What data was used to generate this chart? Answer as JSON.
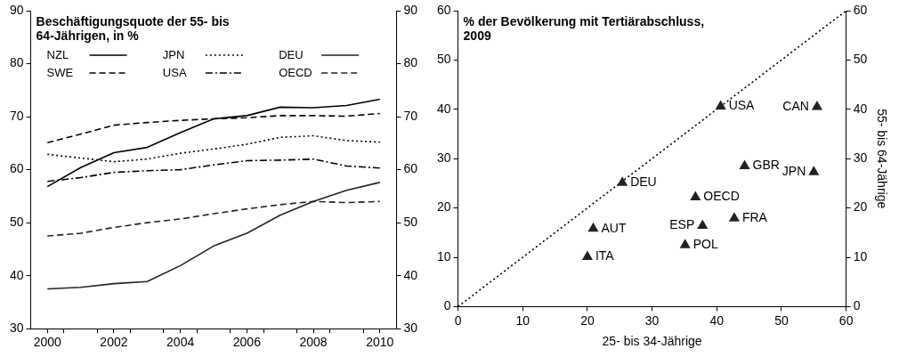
{
  "chart_data": [
    {
      "type": "line",
      "title": "Beschäftigungsquote der 55- bis 64-Jährigen, in %",
      "legend": "top",
      "grid": false,
      "marker": "none",
      "xlim": [
        1999.5,
        2010.5
      ],
      "xticks": [
        {
          "value": 2000,
          "label": "2000"
        },
        {
          "value": 2000.5,
          "label": null
        },
        {
          "value": 2001.5,
          "label": null
        },
        {
          "value": 2002,
          "label": "2002"
        },
        {
          "value": 2002.5,
          "label": null
        },
        {
          "value": 2003.5,
          "label": null
        },
        {
          "value": 2004,
          "label": "2004"
        },
        {
          "value": 2004.5,
          "label": null
        },
        {
          "value": 2005.5,
          "label": null
        },
        {
          "value": 2006,
          "label": "2006"
        },
        {
          "value": 2006.5,
          "label": null
        },
        {
          "value": 2007.5,
          "label": null
        },
        {
          "value": 2008,
          "label": "2008"
        },
        {
          "value": 2008.5,
          "label": null
        },
        {
          "value": 2009.5,
          "label": null
        },
        {
          "value": 2010,
          "label": "2010"
        }
      ],
      "ylim": [
        30,
        90
      ],
      "yticks": [
        30,
        40,
        50,
        60,
        70,
        80,
        90
      ],
      "y2lim": [
        30,
        90
      ],
      "y2ticks": [
        30,
        40,
        50,
        60,
        70,
        80,
        90
      ],
      "x": [
        2000,
        2001,
        2002,
        2003,
        2004,
        2005,
        2006,
        2007,
        2008,
        2009,
        2010
      ],
      "series": [
        {
          "name": "NZL",
          "color": "#000000",
          "line_style": "solid",
          "values": [
            56.8,
            60.4,
            63.2,
            64.2,
            67.0,
            69.6,
            70.2,
            71.8,
            71.7,
            72.1,
            73.3
          ]
        },
        {
          "name": "SWE",
          "color": "#000000",
          "line_style": "dashed",
          "values": [
            65.1,
            66.7,
            68.4,
            68.9,
            69.3,
            69.6,
            69.8,
            70.2,
            70.2,
            70.1,
            70.6
          ]
        },
        {
          "name": "JPN",
          "color": "#000000",
          "line_style": "dotted",
          "values": [
            62.9,
            62.2,
            61.5,
            62.0,
            63.1,
            63.9,
            64.8,
            66.1,
            66.4,
            65.5,
            65.2
          ]
        },
        {
          "name": "USA",
          "color": "#000000",
          "line_style": "dashdot",
          "values": [
            57.8,
            58.5,
            59.5,
            59.8,
            60.0,
            60.9,
            61.7,
            61.8,
            62.0,
            60.7,
            60.3
          ]
        },
        {
          "name": "DEU",
          "color": "#222222",
          "line_style": "solid",
          "values": [
            37.5,
            37.8,
            38.5,
            38.9,
            41.9,
            45.6,
            48.0,
            51.4,
            54.0,
            56.1,
            57.6
          ]
        },
        {
          "name": "OECD",
          "color": "#222222",
          "line_style": "dashed",
          "values": [
            47.5,
            48.0,
            49.1,
            50.0,
            50.7,
            51.7,
            52.6,
            53.4,
            54.0,
            53.8,
            54.0
          ]
        }
      ]
    },
    {
      "type": "scatter",
      "title": "% der Bevölkerung mit Tertiärabschluss, 2009",
      "xlabel": "25- bis 34-Jährige",
      "y2label": "55- bis 64-Jährige",
      "legend": false,
      "grid": false,
      "xlim": [
        0,
        60
      ],
      "xticks": [
        0,
        10,
        20,
        30,
        40,
        50,
        60
      ],
      "ylim": [
        0,
        60
      ],
      "yticks": [
        0,
        10,
        20,
        30,
        40,
        50,
        60
      ],
      "y2lim": [
        0,
        60
      ],
      "y2ticks": [
        0,
        10,
        20,
        30,
        40,
        50,
        60
      ],
      "series": [
        {
          "color": "#222222",
          "marker": "triangle",
          "x": [
            40.6,
            55.5,
            44.3,
            55.0,
            25.4,
            36.7,
            42.7,
            37.8,
            20.9,
            35.1,
            20.0
          ],
          "values": [
            40.6,
            40.5,
            28.5,
            27.3,
            25.1,
            22.2,
            17.9,
            16.4,
            15.8,
            12.5,
            10.1
          ]
        },
        {
          "type": "line",
          "color": "#000000",
          "marker": "none",
          "line_style": "dotted",
          "x": [
            0,
            60
          ],
          "values": [
            0,
            60
          ]
        }
      ],
      "annotations": [
        {
          "text": "USA",
          "x": 40.6,
          "y": 40.6
        },
        {
          "text": "CAN",
          "x": 55.5,
          "y": 40.5
        },
        {
          "text": "GBR",
          "x": 44.3,
          "y": 28.5
        },
        {
          "text": "JPN",
          "x": 55.0,
          "y": 27.3
        },
        {
          "text": "DEU",
          "x": 25.4,
          "y": 25.1
        },
        {
          "text": "OECD",
          "x": 36.7,
          "y": 22.2
        },
        {
          "text": "FRA",
          "x": 42.7,
          "y": 17.9
        },
        {
          "text": "ESP",
          "x": 37.8,
          "y": 16.4
        },
        {
          "text": "AUT",
          "x": 20.9,
          "y": 15.8
        },
        {
          "text": "POL",
          "x": 35.1,
          "y": 12.5
        },
        {
          "text": "ITA",
          "x": 20.0,
          "y": 10.1
        }
      ]
    }
  ]
}
